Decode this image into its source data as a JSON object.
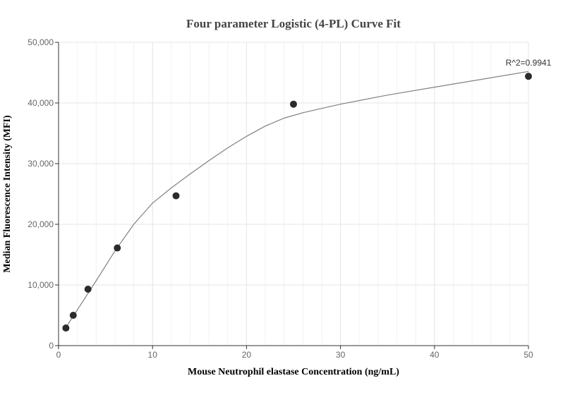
{
  "chart_data": {
    "type": "scatter",
    "title": "Four parameter Logistic (4-PL) Curve Fit",
    "xlabel": "Mouse Neutrophil elastase Concentration (ng/mL)",
    "ylabel": "Median Fluorescence Intensity (MFI)",
    "xlim": [
      0,
      50
    ],
    "ylim": [
      0,
      50000
    ],
    "x_ticks": [
      0,
      10,
      20,
      30,
      40,
      50
    ],
    "y_ticks": [
      0,
      10000,
      20000,
      30000,
      40000,
      50000
    ],
    "x_tick_labels": [
      "0",
      "10",
      "20",
      "30",
      "40",
      "50"
    ],
    "y_tick_labels": [
      "0",
      "10,000",
      "20,000",
      "30,000",
      "40,000",
      "50,000"
    ],
    "grid": true,
    "series": [
      {
        "type": "scatter",
        "x": [
          0.78,
          1.56,
          3.13,
          6.25,
          12.5,
          25,
          50
        ],
        "y": [
          2900,
          5000,
          9300,
          16100,
          24700,
          39800,
          44400
        ]
      },
      {
        "type": "line",
        "x": [
          0.78,
          2,
          4,
          6,
          8,
          10,
          12,
          14,
          16,
          18,
          20,
          22,
          24,
          26,
          28,
          30,
          35,
          40,
          45,
          50
        ],
        "y": [
          3000,
          5900,
          10700,
          15600,
          20000,
          23500,
          26000,
          28300,
          30500,
          32600,
          34500,
          36200,
          37500,
          38400,
          39100,
          39800,
          41300,
          42600,
          43900,
          45200
        ]
      }
    ],
    "annotation": "R^2=0.9941",
    "colors": {
      "points": "#2b2b2b",
      "curve": "#808080",
      "grid": "#e6e6e6",
      "axis": "#333333"
    }
  }
}
